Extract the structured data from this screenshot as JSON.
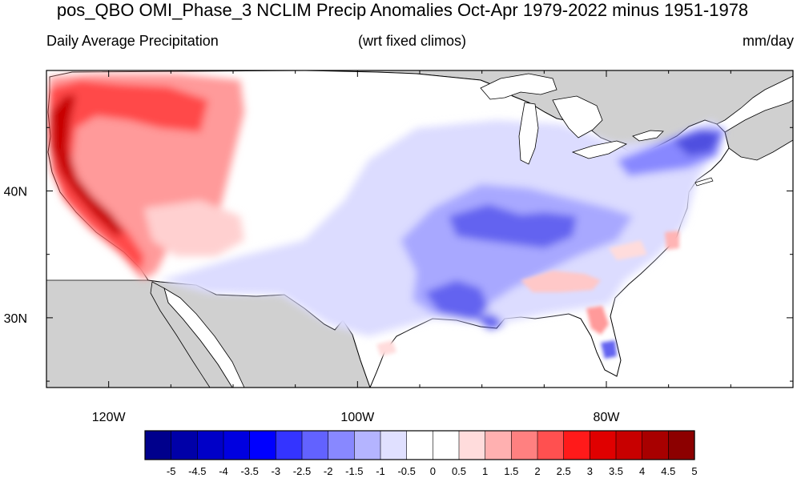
{
  "title": "pos_QBO OMI_Phase_3 NCLIM Precip Anomalies Oct-Apr 1979-2022 minus 1951-1978",
  "subtitle_left": "Daily Average Precipitation",
  "subtitle_center": "(wrt fixed climos)",
  "subtitle_right": "mm/day",
  "map": {
    "lon_range": [
      -125,
      -65
    ],
    "lat_range": [
      24.5,
      49.5
    ],
    "lon_ticks": [
      {
        "value": -120,
        "label": "120W"
      },
      {
        "value": -100,
        "label": "100W"
      },
      {
        "value": -80,
        "label": "80W"
      }
    ],
    "lat_ticks": [
      {
        "value": 40,
        "label": "40N"
      },
      {
        "value": 30,
        "label": "30N"
      }
    ],
    "land_outside_domain_color": "#d0d0d0",
    "ocean_color": "#ffffff"
  },
  "colorbar": {
    "labels": [
      "-5",
      "-4.5",
      "-4",
      "-3.5",
      "-3",
      "-2.5",
      "-2",
      "-1.5",
      "-1",
      "-0.5",
      "0",
      "0.5",
      "1",
      "1.5",
      "2",
      "2.5",
      "3",
      "3.5",
      "4",
      "4.5",
      "5"
    ],
    "colors": [
      "#00008c",
      "#0000a8",
      "#0000c8",
      "#0000e0",
      "#0000ff",
      "#3434ff",
      "#6262ff",
      "#8888ff",
      "#b4b4ff",
      "#e0e0ff",
      "#ffffff",
      "#ffffff",
      "#ffdcdc",
      "#ffb0b0",
      "#ff8080",
      "#ff5050",
      "#ff1a1a",
      "#e00000",
      "#c80000",
      "#a80000",
      "#8c0000"
    ]
  }
}
